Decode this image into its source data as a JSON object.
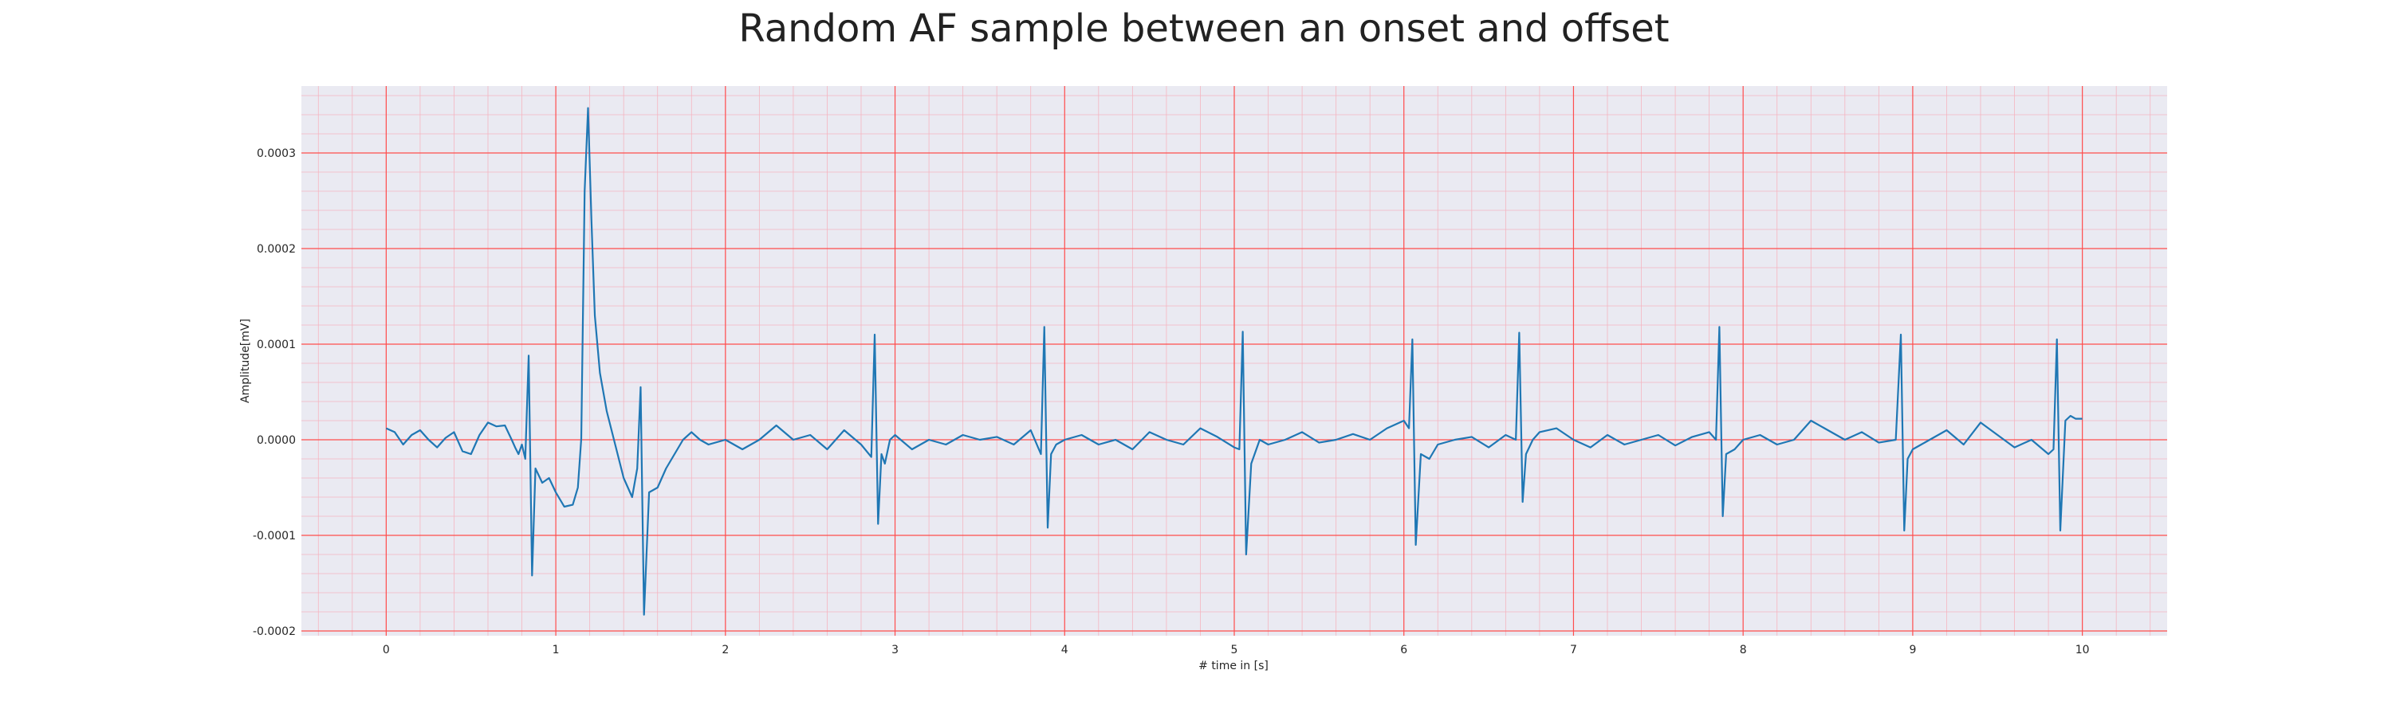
{
  "chart_data": {
    "type": "line",
    "title": "Random AF sample between an onset and offset",
    "xlabel": "# time in [s]",
    "ylabel": "Amplitude[mV]",
    "xlim": [
      -0.5,
      10.5
    ],
    "ylim": [
      -0.000205,
      0.00037
    ],
    "xticks": [
      0,
      1,
      2,
      3,
      4,
      5,
      6,
      7,
      8,
      9,
      10
    ],
    "xtick_labels": [
      "0",
      "1",
      "2",
      "3",
      "4",
      "5",
      "6",
      "7",
      "8",
      "9",
      "10"
    ],
    "yticks": [
      -0.0002,
      -0.0001,
      0.0,
      0.0001,
      0.0002,
      0.0003
    ],
    "ytick_labels": [
      "-0.0002",
      "-0.0001",
      "0.0000",
      "0.0001",
      "0.0002",
      "0.0003"
    ],
    "grid": true,
    "minor_grid": true,
    "colors": {
      "background": "#eaeaf2",
      "major_grid": "#ff4d4d",
      "minor_grid": "#f5b5c0",
      "line": "#1f77b4"
    },
    "series": [
      {
        "x": [
          0.0,
          0.05,
          0.1,
          0.15,
          0.2,
          0.25,
          0.3,
          0.35,
          0.4,
          0.45,
          0.5,
          0.55,
          0.6,
          0.65,
          0.7,
          0.74,
          0.76,
          0.78,
          0.8,
          0.82,
          0.84,
          0.86,
          0.88,
          0.92,
          0.96,
          1.0,
          1.05,
          1.1,
          1.13,
          1.15,
          1.17,
          1.19,
          1.21,
          1.23,
          1.26,
          1.3,
          1.35,
          1.4,
          1.45,
          1.48,
          1.5,
          1.52,
          1.55,
          1.6,
          1.65,
          1.7,
          1.75,
          1.8,
          1.85,
          1.9,
          2.0,
          2.1,
          2.2,
          2.3,
          2.4,
          2.5,
          2.6,
          2.7,
          2.8,
          2.86,
          2.88,
          2.9,
          2.92,
          2.94,
          2.97,
          3.0,
          3.1,
          3.2,
          3.3,
          3.4,
          3.5,
          3.6,
          3.7,
          3.8,
          3.86,
          3.88,
          3.9,
          3.92,
          3.95,
          4.0,
          4.1,
          4.2,
          4.3,
          4.4,
          4.5,
          4.6,
          4.7,
          4.8,
          4.9,
          5.0,
          5.03,
          5.05,
          5.07,
          5.1,
          5.15,
          5.2,
          5.3,
          5.4,
          5.5,
          5.6,
          5.7,
          5.8,
          5.9,
          6.0,
          6.03,
          6.05,
          6.07,
          6.1,
          6.15,
          6.2,
          6.3,
          6.4,
          6.5,
          6.6,
          6.66,
          6.68,
          6.7,
          6.72,
          6.76,
          6.8,
          6.9,
          7.0,
          7.1,
          7.2,
          7.3,
          7.4,
          7.5,
          7.6,
          7.7,
          7.8,
          7.84,
          7.86,
          7.88,
          7.9,
          7.95,
          8.0,
          8.1,
          8.2,
          8.3,
          8.4,
          8.5,
          8.6,
          8.7,
          8.8,
          8.9,
          8.93,
          8.95,
          8.97,
          9.0,
          9.05,
          9.1,
          9.2,
          9.3,
          9.4,
          9.5,
          9.6,
          9.7,
          9.8,
          9.83,
          9.85,
          9.87,
          9.9,
          9.93,
          9.96,
          10.0
        ],
        "y": [
          1.2e-05,
          8e-06,
          -5e-06,
          5e-06,
          1e-05,
          0.0,
          -8e-06,
          2e-06,
          8e-06,
          -1.2e-05,
          -1.5e-05,
          5e-06,
          1.8e-05,
          1.4e-05,
          1.5e-05,
          0.0,
          -8e-06,
          -1.5e-05,
          -5e-06,
          -2e-05,
          8.8e-05,
          -0.000142,
          -3e-05,
          -4.5e-05,
          -4e-05,
          -5.5e-05,
          -7e-05,
          -6.8e-05,
          -5e-05,
          1e-06,
          0.00026,
          0.000347,
          0.00023,
          0.00013,
          7e-05,
          3e-05,
          -5e-06,
          -4e-05,
          -6e-05,
          -3e-05,
          5.5e-05,
          -0.000183,
          -5.5e-05,
          -5e-05,
          -3e-05,
          -1.5e-05,
          0.0,
          8e-06,
          0.0,
          -5e-06,
          0.0,
          -1e-05,
          0.0,
          1.5e-05,
          0.0,
          5e-06,
          -1e-05,
          1e-05,
          -5e-06,
          -1.8e-05,
          0.00011,
          -8.8e-05,
          -1.5e-05,
          -2.5e-05,
          0.0,
          5e-06,
          -1e-05,
          0.0,
          -5e-06,
          5e-06,
          0.0,
          3e-06,
          -5e-06,
          1e-05,
          -1.5e-05,
          0.000118,
          -9.2e-05,
          -1.5e-05,
          -5e-06,
          0.0,
          5e-06,
          -5e-06,
          0.0,
          -1e-05,
          8e-06,
          0.0,
          -5e-06,
          1.2e-05,
          3e-06,
          -8e-06,
          -1e-05,
          0.000113,
          -0.00012,
          -2.5e-05,
          0.0,
          -5e-06,
          0.0,
          8e-06,
          -3e-06,
          0.0,
          6e-06,
          0.0,
          1.2e-05,
          2e-05,
          1.2e-05,
          0.000105,
          -0.00011,
          -1.5e-05,
          -2e-05,
          -5e-06,
          0.0,
          3e-06,
          -8e-06,
          5e-06,
          0.0,
          0.000112,
          -6.5e-05,
          -1.5e-05,
          0.0,
          8e-06,
          1.2e-05,
          0.0,
          -8e-06,
          5e-06,
          -5e-06,
          0.0,
          5e-06,
          -6e-06,
          3e-06,
          8e-06,
          0.0,
          0.000118,
          -8e-05,
          -1.5e-05,
          -1e-05,
          0.0,
          5e-06,
          -5e-06,
          0.0,
          2e-05,
          1e-05,
          0.0,
          8e-06,
          -3e-06,
          0.0,
          0.00011,
          -9.5e-05,
          -2e-05,
          -1e-05,
          -5e-06,
          0.0,
          1e-05,
          -5e-06,
          1.8e-05,
          5e-06,
          -8e-06,
          0.0,
          -1.5e-05,
          -1e-05,
          0.000105,
          -9.5e-05,
          2e-05,
          2.5e-05,
          2.2e-05,
          2.2e-05
        ]
      }
    ]
  }
}
